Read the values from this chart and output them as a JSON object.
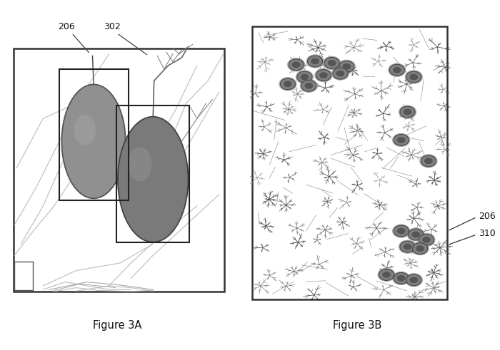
{
  "fig_width": 7.0,
  "fig_height": 4.91,
  "dpi": 100,
  "bg_color": "#ffffff",
  "fruit_fill": "#8a8a8a",
  "fruit_fill2": "#767676",
  "fruit_edge": "#444444",
  "fruit_highlight": "#b0b0b0",
  "leaf_color": "#555555",
  "line_bg": "#cccccc",
  "fig3a_label": "Figure 3A",
  "fig3b_label": "Figure 3B",
  "label_206": "206",
  "label_302": "302",
  "label_206b": "206",
  "label_310": "310"
}
